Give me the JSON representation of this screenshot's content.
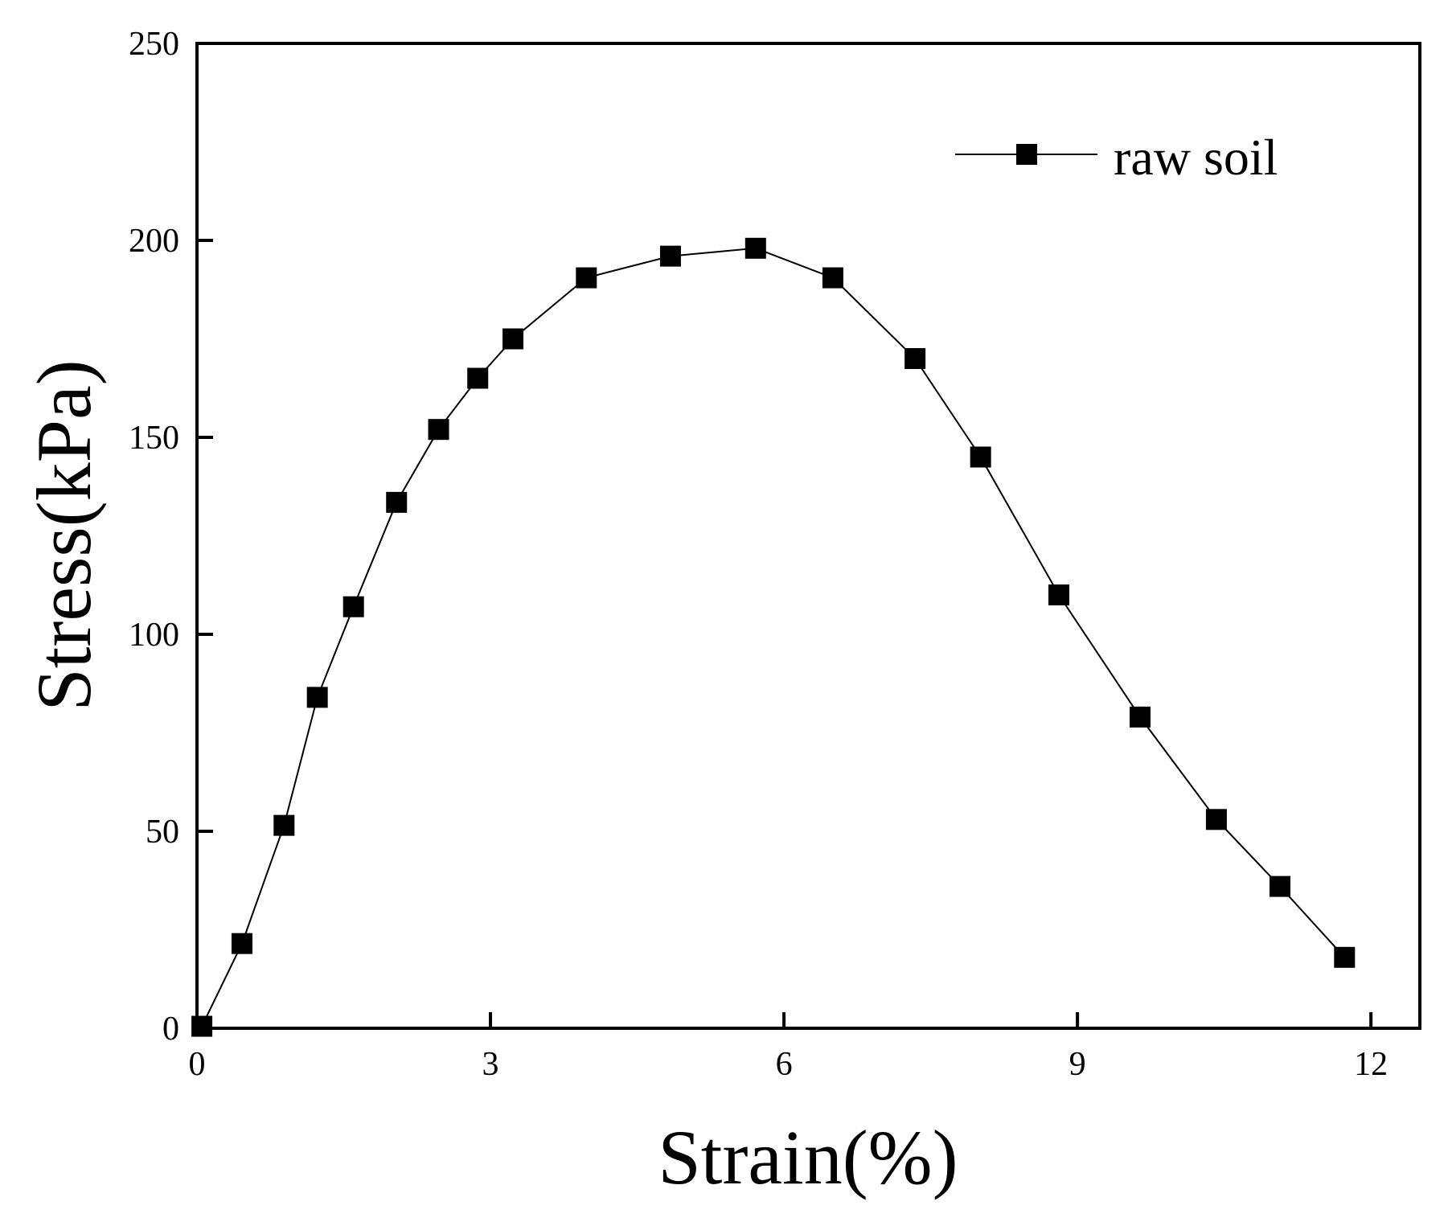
{
  "chart_data": {
    "type": "line",
    "title": "",
    "xlabel": "Strain(%)",
    "ylabel": "Stress(kPa)",
    "xlim": [
      0,
      12.5
    ],
    "ylim": [
      0,
      250
    ],
    "xticks": [
      0,
      3,
      6,
      9,
      12
    ],
    "yticks": [
      0,
      50,
      100,
      150,
      200,
      250
    ],
    "grid": false,
    "legend_position": "top-right",
    "series": [
      {
        "name": "raw soil",
        "marker": "square",
        "color": "#000000",
        "x": [
          0.05,
          0.46,
          0.89,
          1.23,
          1.6,
          2.04,
          2.47,
          2.87,
          3.23,
          3.98,
          4.84,
          5.71,
          6.5,
          7.34,
          8.01,
          8.81,
          9.64,
          10.42,
          11.07,
          11.73
        ],
        "y": [
          0.5,
          21.5,
          51.5,
          84,
          107,
          133.5,
          152,
          165,
          175,
          190.5,
          196,
          198,
          190.5,
          170,
          145,
          110,
          79,
          53,
          36,
          18
        ]
      }
    ]
  }
}
